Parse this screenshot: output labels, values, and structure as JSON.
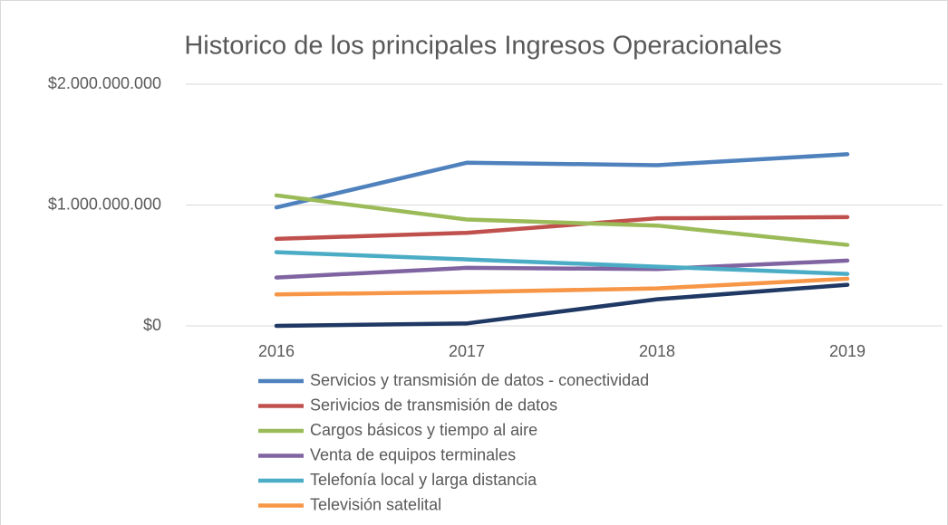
{
  "chart_data": {
    "type": "line",
    "title": "Historico de los principales Ingresos Operacionales",
    "categories": [
      "2016",
      "2017",
      "2018",
      "2019"
    ],
    "series": [
      {
        "name": "Servicios y transmisión de datos - conectividad",
        "color": "#4f81bd",
        "values": [
          980000000,
          1350000000,
          1330000000,
          1420000000
        ]
      },
      {
        "name": "Serivicios de transmisión de datos",
        "color": "#c0504d",
        "values": [
          720000000,
          770000000,
          890000000,
          900000000
        ]
      },
      {
        "name": "Cargos básicos y tiempo al aire",
        "color": "#9bbb59",
        "values": [
          1080000000,
          880000000,
          830000000,
          670000000
        ]
      },
      {
        "name": "Venta de equipos terminales",
        "color": "#8064a2",
        "values": [
          400000000,
          480000000,
          470000000,
          540000000
        ]
      },
      {
        "name": "Telefonía local y larga distancia",
        "color": "#4bacc6",
        "values": [
          610000000,
          550000000,
          490000000,
          430000000
        ]
      },
      {
        "name": "Televisión satelital",
        "color": "#f79646",
        "values": [
          260000000,
          280000000,
          310000000,
          390000000
        ]
      },
      {
        "color": "#1f3864",
        "values": [
          0,
          20000000,
          220000000,
          340000000
        ]
      }
    ],
    "ylim": [
      0,
      2000000000
    ],
    "yticks": [
      {
        "value": 0,
        "label": "$0"
      },
      {
        "value": 1000000000,
        "label": "$1.000.000.000"
      },
      {
        "value": 2000000000,
        "label": "$2.000.000.000"
      }
    ],
    "grid": true,
    "legend": "bottom"
  }
}
